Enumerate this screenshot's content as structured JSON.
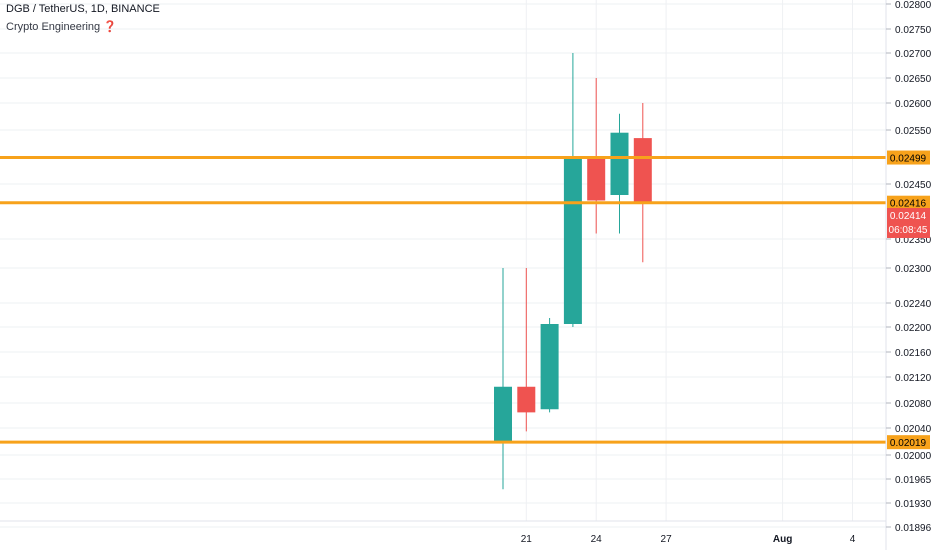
{
  "header": {
    "symbol_line": "DGB / TetherUS, 1D, BINANCE",
    "indicator_line": "Crypto Engineering ❓"
  },
  "colors": {
    "up": "#26a69a",
    "down": "#ef5350",
    "level_line": "#f7a21b",
    "level_badge": "#f7a21b",
    "price_badge": "#ef5350",
    "grid": "#eef0f3",
    "axis_text": "#131722"
  },
  "chart_data": {
    "type": "candlestick",
    "title": "DGB / TetherUS, 1D, BINANCE",
    "price_axis_ticks": [
      "0.02800",
      "0.02750",
      "0.02700",
      "0.02650",
      "0.02600",
      "0.02550",
      "0.02450",
      "0.02350",
      "0.02300",
      "0.02240",
      "0.02200",
      "0.02160",
      "0.02120",
      "0.02080",
      "0.02040",
      "0.02000",
      "0.01965",
      "0.01930",
      "0.01896"
    ],
    "time_axis_ticks": [
      "21",
      "24",
      "27",
      "Aug",
      "4"
    ],
    "candles": [
      {
        "day": "20",
        "open": 0.02019,
        "high": 0.023,
        "low": 0.0195,
        "close": 0.02105
      },
      {
        "day": "21",
        "open": 0.02105,
        "high": 0.023,
        "low": 0.02035,
        "close": 0.02065
      },
      {
        "day": "22",
        "open": 0.0207,
        "high": 0.02215,
        "low": 0.02065,
        "close": 0.02205
      },
      {
        "day": "23",
        "open": 0.02205,
        "high": 0.027,
        "low": 0.022,
        "close": 0.02499
      },
      {
        "day": "24",
        "open": 0.02499,
        "high": 0.0265,
        "low": 0.0236,
        "close": 0.0242
      },
      {
        "day": "25",
        "open": 0.0243,
        "high": 0.0258,
        "low": 0.0236,
        "close": 0.02545
      },
      {
        "day": "26",
        "open": 0.02535,
        "high": 0.026,
        "low": 0.0231,
        "close": 0.02414
      }
    ],
    "horizontal_levels": [
      {
        "label": "0.02499",
        "value": 0.02499
      },
      {
        "label": "0.02416",
        "value": 0.02416
      },
      {
        "label": "0.02019",
        "value": 0.02019
      }
    ],
    "last_price": {
      "label": "0.02414",
      "countdown": "06:08:45",
      "value": 0.02414
    },
    "grid": true
  }
}
